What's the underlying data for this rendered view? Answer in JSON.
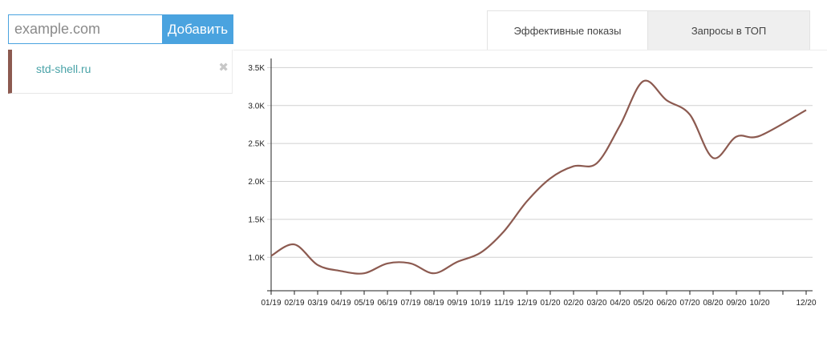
{
  "add_form": {
    "placeholder": "example.com",
    "button_label": "Добавить"
  },
  "domains": [
    {
      "name": "std-shell.ru",
      "color": "#8c5a50",
      "remove_icon": "close-icon"
    }
  ],
  "tabs": [
    {
      "label": "Эффективные показы",
      "active": true
    },
    {
      "label": "Запросы в ТОП",
      "active": false
    }
  ],
  "chart_data": {
    "type": "line",
    "x": [
      "01/19",
      "02/19",
      "03/19",
      "04/19",
      "05/19",
      "06/19",
      "07/19",
      "08/19",
      "09/19",
      "10/19",
      "11/19",
      "12/19",
      "01/20",
      "02/20",
      "03/20",
      "04/20",
      "05/20",
      "06/20",
      "07/20",
      "08/20",
      "09/20",
      "10/20",
      "12/20"
    ],
    "x_labels": [
      "01/19",
      "02/19",
      "03/19",
      "04/19",
      "05/19",
      "06/19",
      "07/19",
      "08/19",
      "09/19",
      "10/19",
      "11/19",
      "12/19",
      "01/20",
      "02/20",
      "03/20",
      "04/20",
      "05/20",
      "06/20",
      "07/20",
      "08/20",
      "09/20",
      "10/20",
      "",
      "12/20"
    ],
    "series": [
      {
        "color": "#8c5a50",
        "values": [
          1020,
          1170,
          900,
          820,
          790,
          920,
          920,
          790,
          940,
          1060,
          1340,
          1740,
          2040,
          2200,
          2240,
          2740,
          3320,
          3070,
          2880,
          2310,
          2590,
          2600,
          2940
        ]
      }
    ],
    "y_ticks": [
      "1.0K",
      "1.5K",
      "2.0K",
      "2.5K",
      "3.0K",
      "3.5K"
    ],
    "y_tick_values": [
      1000,
      1500,
      2000,
      2500,
      3000,
      3500
    ],
    "ylim": [
      560,
      3620
    ],
    "grid": true,
    "title": "",
    "xlabel": "",
    "ylabel": ""
  }
}
